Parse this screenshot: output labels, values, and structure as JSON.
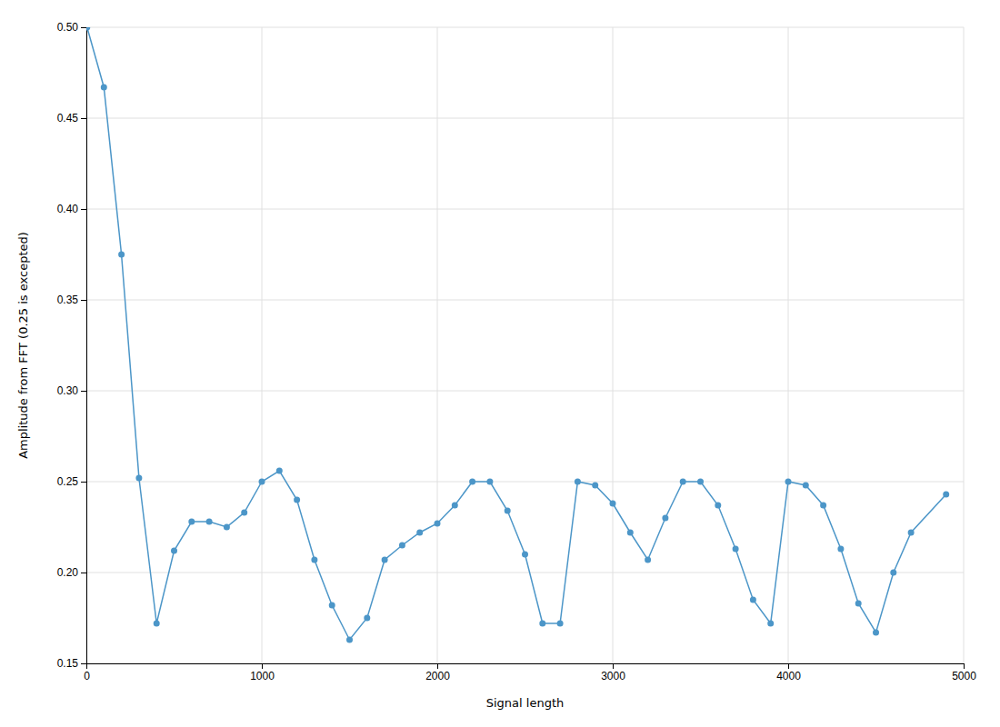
{
  "chart_data": {
    "type": "line",
    "x": [
      4,
      100,
      200,
      300,
      400,
      500,
      600,
      700,
      800,
      900,
      1000,
      1100,
      1200,
      1300,
      1400,
      1500,
      1600,
      1700,
      1800,
      1900,
      2000,
      2100,
      2200,
      2300,
      2400,
      2500,
      2600,
      2700,
      2800,
      2900,
      3000,
      3100,
      3200,
      3300,
      3400,
      3500,
      3600,
      3700,
      3800,
      3900,
      4000,
      4100,
      4200,
      4300,
      4400,
      4500,
      4600,
      4700,
      4900
    ],
    "y": [
      0.5,
      0.467,
      0.375,
      0.252,
      0.172,
      0.212,
      0.228,
      0.228,
      0.225,
      0.233,
      0.25,
      0.256,
      0.24,
      0.207,
      0.182,
      0.163,
      0.175,
      0.207,
      0.215,
      0.222,
      0.227,
      0.237,
      0.25,
      0.25,
      0.234,
      0.21,
      0.172,
      0.172,
      0.25,
      0.248,
      0.238,
      0.222,
      0.207,
      0.23,
      0.25,
      0.25,
      0.237,
      0.213,
      0.185,
      0.172,
      0.25,
      0.248,
      0.237,
      0.213,
      0.183,
      0.167,
      0.2,
      0.222,
      0.243
    ],
    "xlabel": "Signal length",
    "ylabel": "Amplitude from FFT (0.25 is excepted)",
    "xlim": [
      0,
      5000
    ],
    "ylim": [
      0.15,
      0.5
    ],
    "xticks": [
      0,
      1000,
      2000,
      3000,
      4000,
      5000
    ],
    "yticks": [
      0.15,
      {
        "value": 0.2,
        "label": "0.20"
      },
      0.25,
      {
        "value": 0.3,
        "label": "0.30"
      },
      0.35,
      {
        "value": 0.4,
        "label": "0.40"
      },
      0.45,
      {
        "value": 0.5,
        "label": "0.50"
      }
    ],
    "color": "#4c96c8",
    "marker": "circle",
    "grid": true
  }
}
